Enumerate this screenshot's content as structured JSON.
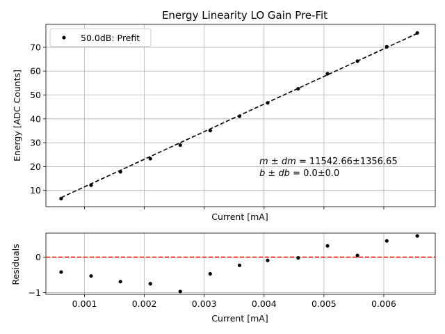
{
  "chart_data": [
    {
      "type": "scatter",
      "title": "Energy Linearity LO Gain Pre-Fit",
      "xlabel": "Current [mA]",
      "ylabel": "Energy [ADC Counts]",
      "xlim": [
        0.000355,
        0.00686
      ],
      "ylim": [
        3.2,
        79.6
      ],
      "yticks": [
        "10",
        "20",
        "30",
        "40",
        "50",
        "60",
        "70"
      ],
      "ytick_values": [
        10,
        20,
        30,
        40,
        50,
        60,
        70
      ],
      "xtick_values": [
        0.001,
        0.002,
        0.003,
        0.004,
        0.005,
        0.006
      ],
      "grid": true,
      "legend": {
        "location": "upper-left",
        "entries": [
          "50.0dB: Prefit"
        ]
      },
      "series": [
        {
          "name": "50.0dB: Prefit",
          "marker": "point",
          "x": [
            0.00061,
            0.00111,
            0.0016,
            0.0021,
            0.0026,
            0.0031,
            0.00359,
            0.00406,
            0.00457,
            0.00506,
            0.00556,
            0.00605,
            0.00656
          ],
          "y": [
            6.6,
            12.2,
            17.8,
            23.3,
            29.0,
            35.1,
            41.1,
            46.7,
            52.6,
            58.9,
            64.2,
            70.2,
            76.0
          ]
        }
      ],
      "fit_line": {
        "style": "dashed",
        "x": [
          0.00061,
          0.00656
        ],
        "y": [
          7.0,
          75.8
        ]
      },
      "annotations": [
        {
          "line": "m ± dm = 11542.66±1356.65",
          "math": "m ± dm",
          "rest": " = 11542.66±1356.65"
        },
        {
          "line": "b ± db = 0.0±0.0",
          "math": "b ± db",
          "rest": " = 0.0±0.0"
        }
      ]
    },
    {
      "type": "scatter",
      "xlabel": "Current [mA]",
      "ylabel": "Residuals",
      "xlim": [
        0.000355,
        0.00686
      ],
      "ylim": [
        -1.05,
        0.68
      ],
      "yticks": [
        "−1",
        "0"
      ],
      "ytick_values": [
        -1,
        0
      ],
      "xticks": [
        "0.001",
        "0.002",
        "0.003",
        "0.004",
        "0.005",
        "0.006"
      ],
      "xtick_values": [
        0.001,
        0.002,
        0.003,
        0.004,
        0.005,
        0.006
      ],
      "grid": true,
      "zero_line": {
        "style": "dashed",
        "color": "#ff0000"
      },
      "series": [
        {
          "marker": "point",
          "x": [
            0.00061,
            0.00111,
            0.0016,
            0.0021,
            0.0026,
            0.0031,
            0.00359,
            0.00406,
            0.00457,
            0.00506,
            0.00556,
            0.00605,
            0.00656
          ],
          "y": [
            -0.42,
            -0.53,
            -0.69,
            -0.75,
            -0.97,
            -0.47,
            -0.23,
            -0.09,
            -0.02,
            0.32,
            0.05,
            0.46,
            0.6
          ]
        }
      ]
    }
  ]
}
